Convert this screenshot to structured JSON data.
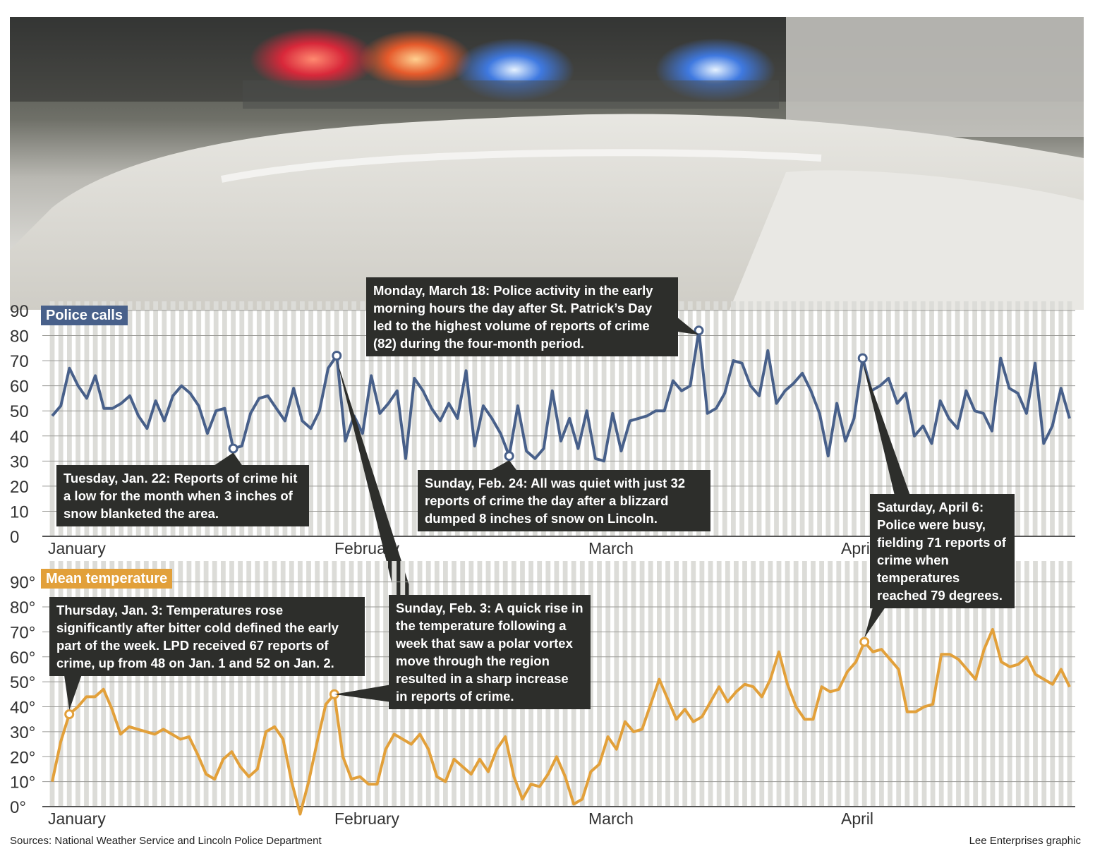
{
  "chart_data": [
    {
      "type": "line",
      "title": "Police calls",
      "ylim": [
        0,
        90
      ],
      "yticks": [
        "0",
        "10",
        "20",
        "30",
        "40",
        "50",
        "60",
        "70",
        "80",
        "90"
      ],
      "xlabels": [
        "January",
        "February",
        "March",
        "April"
      ],
      "grid": true,
      "color": "#48608a",
      "series": [
        {
          "values": [
            48,
            52,
            67,
            60,
            55,
            64,
            51,
            51,
            53,
            56,
            48,
            43,
            54,
            46,
            56,
            60,
            57,
            52,
            41,
            50,
            51,
            35,
            36,
            49,
            55,
            56,
            51,
            46,
            59,
            46,
            43,
            50,
            67,
            72,
            38,
            48,
            41,
            64,
            49,
            53,
            58,
            31,
            63,
            58,
            51,
            46,
            53,
            47,
            66,
            36,
            52,
            47,
            41,
            32,
            52,
            34,
            31,
            35,
            58,
            38,
            47,
            35,
            50,
            31,
            30,
            49,
            34,
            46,
            47,
            48,
            50,
            50,
            62,
            58,
            60,
            82,
            49,
            51,
            57,
            70,
            69,
            60,
            56,
            74,
            53,
            58,
            61,
            65,
            58,
            49,
            32,
            53,
            38,
            47,
            71,
            58,
            60,
            63,
            53,
            57,
            40,
            44,
            37,
            54,
            47,
            43,
            58,
            50,
            49,
            42,
            71,
            59,
            57,
            49,
            69,
            37,
            44,
            59,
            47
          ]
        }
      ],
      "annotations": [
        {
          "text": "Tuesday, Jan. 22: Reports of crime hit a low for the month when 3 inches of snow blanketed the area."
        },
        {
          "text": "Monday, March 18: Police activity in the early morning hours the day after St. Patrick’s Day led to the highest volume of reports of crime (82) during the four-month period."
        },
        {
          "text": "Sunday, Feb. 24: All was quiet with just 32 reports of crime the day after a blizzard dumped 8 inches of snow on Lincoln."
        },
        {
          "text": "Saturday, April 6: Police were busy, fielding 71 reports of crime when temperatures reached 79 degrees."
        }
      ]
    },
    {
      "type": "line",
      "title": "Mean temperature",
      "ylim": [
        0,
        95
      ],
      "yticks": [
        "0°",
        "10°",
        "20°",
        "30°",
        "40°",
        "50°",
        "60°",
        "70°",
        "80°",
        "90°"
      ],
      "xlabels": [
        "January",
        "February",
        "March",
        "April"
      ],
      "grid": true,
      "color": "#e2a03a",
      "series": [
        {
          "values": [
            10,
            26,
            37,
            40,
            44,
            44,
            47,
            39,
            29,
            32,
            31,
            30,
            29,
            31,
            29,
            27,
            28,
            21,
            13,
            11,
            19,
            22,
            16,
            12,
            15,
            30,
            32,
            27,
            10,
            -3,
            10,
            26,
            41,
            45,
            20,
            11,
            12,
            9,
            9,
            23,
            29,
            27,
            25,
            29,
            23,
            12,
            10,
            19,
            16,
            13,
            19,
            14,
            23,
            28,
            12,
            3,
            9,
            8,
            13,
            20,
            12,
            1,
            3,
            14,
            17,
            28,
            23,
            34,
            30,
            31,
            41,
            51,
            43,
            35,
            39,
            34,
            36,
            42,
            48,
            42,
            46,
            49,
            48,
            44,
            51,
            62,
            49,
            40,
            35,
            35,
            48,
            46,
            47,
            54,
            58,
            66,
            62,
            63,
            59,
            55,
            38,
            38,
            40,
            41,
            61,
            61,
            59,
            55,
            51,
            63,
            71,
            58,
            56,
            57,
            60,
            53,
            51,
            49,
            55,
            48
          ]
        }
      ],
      "annotations": [
        {
          "text": "Thursday, Jan. 3: Temperatures rose significantly after bitter cold defined the early part of the week. LPD received 67 reports of crime, up from 48 on Jan. 1 and 52 on Jan. 2."
        },
        {
          "text": "Sunday, Feb. 3: A quick rise in the temperature following a week that saw a polar vortex move through the region resulted in a sharp increase in reports of crime."
        }
      ]
    }
  ],
  "colors": {
    "police_line": "#48608a",
    "temperature_line": "#e2a03a",
    "callout_bg": "#2d2e2b",
    "stripe": "#dcdcd8"
  },
  "photo": {
    "icon": "police-car-lights-photo"
  },
  "footer": {
    "sources": "Sources: National Weather Service and Lincoln Police Department",
    "credit": "Lee Enterprises graphic"
  }
}
